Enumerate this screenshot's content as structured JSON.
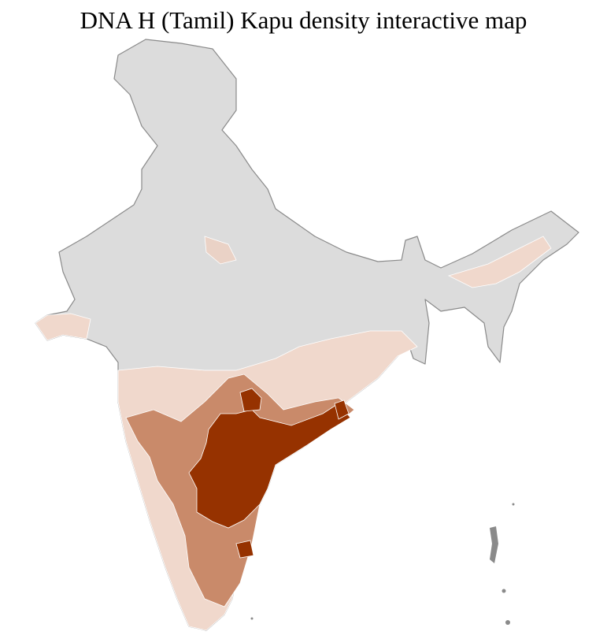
{
  "title": "DNA H (Tamil) Kapu density interactive map",
  "map": {
    "type": "choropleth",
    "region": "India districts",
    "colors": {
      "no_data": "#dcdcdc",
      "low": "#f0d8cc",
      "medium": "#c98a6a",
      "high": "#963200",
      "border": "#ffffff",
      "state_border": "#8a8a8a"
    }
  }
}
